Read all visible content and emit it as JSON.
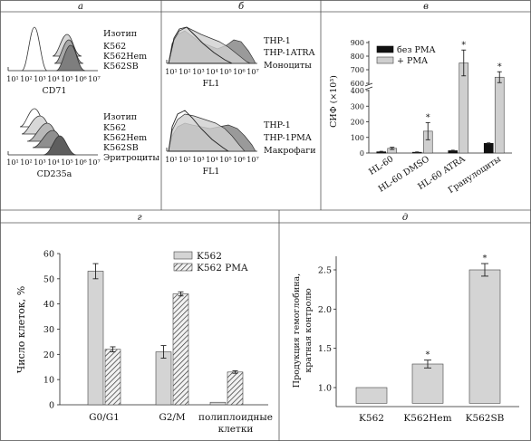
{
  "panels": {
    "a": {
      "label": "а",
      "top": {
        "legend": [
          "Изотип",
          "K562",
          "K562Hem",
          "K562SB"
        ],
        "xlabel": "CD71"
      },
      "bottom": {
        "legend": [
          "Изотип",
          "K562",
          "K562Hem",
          "K562SB",
          "Эритроциты"
        ],
        "xlabel": "CD235a"
      },
      "ticks": [
        "10¹",
        "10²",
        "10³",
        "10⁴",
        "10⁵",
        "10⁶",
        "10⁷"
      ]
    },
    "b": {
      "label": "б",
      "top": {
        "legend": [
          "THP-1",
          "THP-1ATRA",
          "Моноциты"
        ],
        "xlabel": "FL1"
      },
      "bottom": {
        "legend": [
          "THP-1",
          "THP-1PMA",
          "Макрофаги"
        ],
        "xlabel": "FL1"
      },
      "ticks": [
        "10¹",
        "10²",
        "10³",
        "10⁴",
        "10⁵",
        "10⁶",
        "10⁷"
      ]
    },
    "v": {
      "label": "в"
    },
    "g": {
      "label": "г"
    },
    "d": {
      "label": "д"
    }
  },
  "chart_data": [
    {
      "panel": "в",
      "type": "bar",
      "categories": [
        "HL-60",
        "HL-60 DMSO",
        "HL-60 ATRA",
        "Гранулоциты"
      ],
      "series": [
        {
          "name": "без PMA",
          "values": [
            8,
            5,
            15,
            62
          ],
          "errors": [
            3,
            2,
            3,
            3
          ],
          "color": "#111111"
        },
        {
          "name": "+ PMA",
          "values": [
            30,
            140,
            750,
            645
          ],
          "errors": [
            7,
            55,
            95,
            40
          ],
          "color": "#cfcfcf"
        }
      ],
      "significant": [
        "",
        "*",
        "*",
        "*"
      ],
      "ylabel": "СИФ (×10³)",
      "yticks": [
        "0",
        "100",
        "200",
        "300",
        "400",
        "600",
        "700",
        "800",
        "900"
      ],
      "broken_axis": [
        400,
        600
      ],
      "ylim": [
        0,
        900
      ],
      "legend_position": "top-right"
    },
    {
      "panel": "г",
      "type": "bar",
      "categories": [
        "G0/G1",
        "G2/M",
        "полиплоидные клетки"
      ],
      "category_lines": [
        [
          "G0/G1"
        ],
        [
          "G2/M"
        ],
        [
          "полиплоидные",
          "клетки"
        ]
      ],
      "series": [
        {
          "name": "K562",
          "values": [
            53,
            21,
            1
          ],
          "errors": [
            3,
            2.5,
            0
          ],
          "fill": "gray"
        },
        {
          "name": "K562 PMA",
          "values": [
            22,
            44,
            13
          ],
          "errors": [
            1,
            0.8,
            0.5
          ],
          "fill": "hatched"
        }
      ],
      "ylabel": "Число клеток, %",
      "yticks": [
        "0",
        "10",
        "20",
        "30",
        "40",
        "50",
        "60"
      ],
      "ylim": [
        0,
        60
      ],
      "legend_position": "top-right"
    },
    {
      "panel": "д",
      "type": "bar",
      "categories": [
        "K562",
        "K562Hem",
        "K562SB"
      ],
      "values": [
        1.0,
        1.3,
        2.5
      ],
      "errors": [
        0,
        0.05,
        0.08
      ],
      "significant": [
        "",
        "*",
        "*"
      ],
      "ylabel_lines": [
        "Продукция гемоглобина,",
        "кратная контролю"
      ],
      "yticks": [
        "1.0",
        "1.5",
        "2.0",
        "2.5"
      ],
      "ylim": [
        0.8,
        2.75
      ]
    }
  ]
}
